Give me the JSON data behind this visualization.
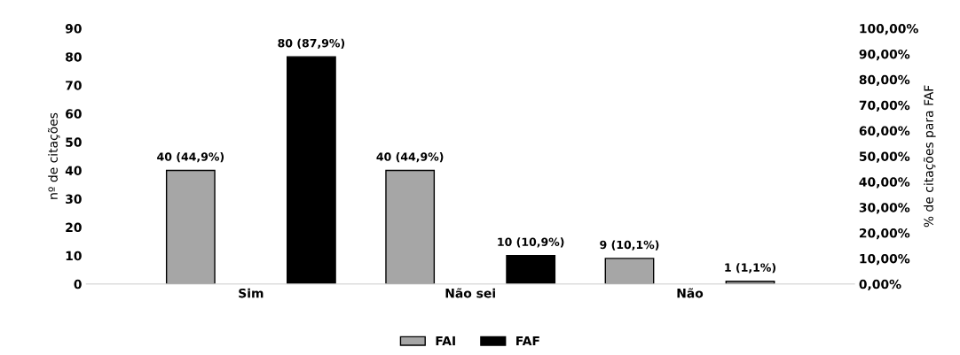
{
  "chart_data": {
    "type": "bar",
    "categories": [
      "Sim",
      "Não sei",
      "Não"
    ],
    "series": [
      {
        "name": "FAI",
        "color": "#a6a6a6",
        "values": [
          40,
          40,
          9
        ],
        "value_labels": [
          "40 (44,9%)",
          "40 (44,9%)",
          "9 (10,1%)"
        ]
      },
      {
        "name": "FAF",
        "colors": [
          "#000000",
          "#000000",
          "#7f7f7f"
        ],
        "color": "#000000",
        "values": [
          80,
          10,
          1
        ],
        "value_labels": [
          "80 (87,9%)",
          "10 (10,9%)",
          "1 (1,1%)"
        ]
      }
    ],
    "ylabel": "nº de citações",
    "y2label": "% de citações para FAF",
    "ylim": [
      0,
      90
    ],
    "yticks": [
      0,
      10,
      20,
      30,
      40,
      50,
      60,
      70,
      80,
      90
    ],
    "y2lim": [
      0,
      100
    ],
    "y2ticks": [
      {
        "value": 0,
        "label": "0,00%"
      },
      {
        "value": 10,
        "label": "10,00%"
      },
      {
        "value": 20,
        "label": "20,00%"
      },
      {
        "value": 30,
        "label": "30,00%"
      },
      {
        "value": 40,
        "label": "40,00%"
      },
      {
        "value": 50,
        "label": "50,00%"
      },
      {
        "value": 60,
        "label": "60,00%"
      },
      {
        "value": 70,
        "label": "70,00%"
      },
      {
        "value": 80,
        "label": "80,00%"
      },
      {
        "value": 90,
        "label": "90,00%"
      },
      {
        "value": 100,
        "label": "100,00%"
      }
    ],
    "grid": false,
    "legend": "bottom"
  }
}
